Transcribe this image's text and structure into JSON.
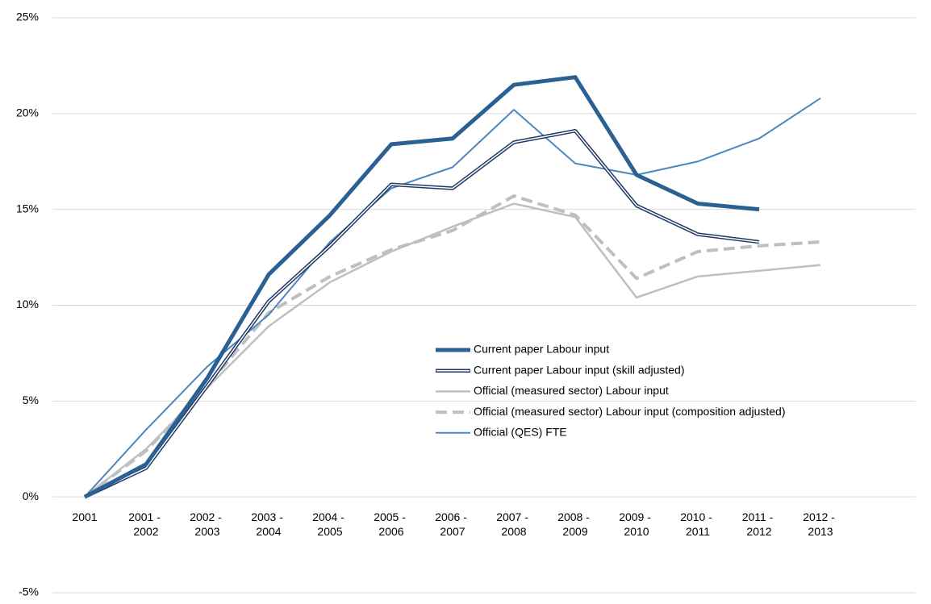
{
  "chart_data": {
    "type": "line",
    "categories": [
      "2001",
      "2001 - 2002",
      "2002 - 2003",
      "2003 - 2004",
      "2004 - 2005",
      "2005 - 2006",
      "2006 - 2007",
      "2007 - 2008",
      "2008 - 2009",
      "2009 - 2010",
      "2010 - 2011",
      "2011 - 2012",
      "2012 - 2013"
    ],
    "ylim": [
      -5,
      25
    ],
    "yticks": [
      {
        "value": -5,
        "label": "-5%"
      },
      {
        "value": 0,
        "label": "0%"
      },
      {
        "value": 5,
        "label": "5%"
      },
      {
        "value": 10,
        "label": "10%"
      },
      {
        "value": 15,
        "label": "15%"
      },
      {
        "value": 20,
        "label": "20%"
      },
      {
        "value": 25,
        "label": "25%"
      }
    ],
    "grid": true,
    "series": [
      {
        "name": "Current paper Labour input",
        "color": "#2a6092",
        "width": 5,
        "style": "solid",
        "values": [
          0,
          1.7,
          6.2,
          11.6,
          14.7,
          18.4,
          18.7,
          21.5,
          21.9,
          16.8,
          15.3,
          15.0,
          null
        ]
      },
      {
        "name": "Current paper Labour input (skill adjusted)",
        "color": "#1f3864",
        "width": 4.5,
        "style": "double",
        "values": [
          0,
          1.5,
          5.8,
          10.2,
          13.1,
          16.3,
          16.1,
          18.5,
          19.1,
          15.2,
          13.7,
          13.3,
          null
        ]
      },
      {
        "name": "Official (measured sector) Labour input",
        "color": "#bfbfbf",
        "width": 2.5,
        "style": "solid",
        "values": [
          0,
          2.5,
          5.7,
          8.9,
          11.2,
          12.8,
          14.1,
          15.3,
          14.6,
          10.4,
          11.5,
          11.8,
          12.1
        ]
      },
      {
        "name": "Official (measured sector) Labour input (composition adjusted)",
        "color": "#bfbfbf",
        "width": 4,
        "style": "dashed",
        "values": [
          0,
          2.4,
          5.8,
          9.6,
          11.5,
          12.9,
          13.9,
          15.7,
          14.7,
          11.4,
          12.8,
          13.1,
          13.3
        ]
      },
      {
        "name": "Official (QES) FTE",
        "color": "#4f86bd",
        "width": 2,
        "style": "solid",
        "values": [
          0,
          3.5,
          6.8,
          9.5,
          13.3,
          16.1,
          17.2,
          20.2,
          17.4,
          16.8,
          17.5,
          18.7,
          20.8
        ]
      }
    ]
  }
}
